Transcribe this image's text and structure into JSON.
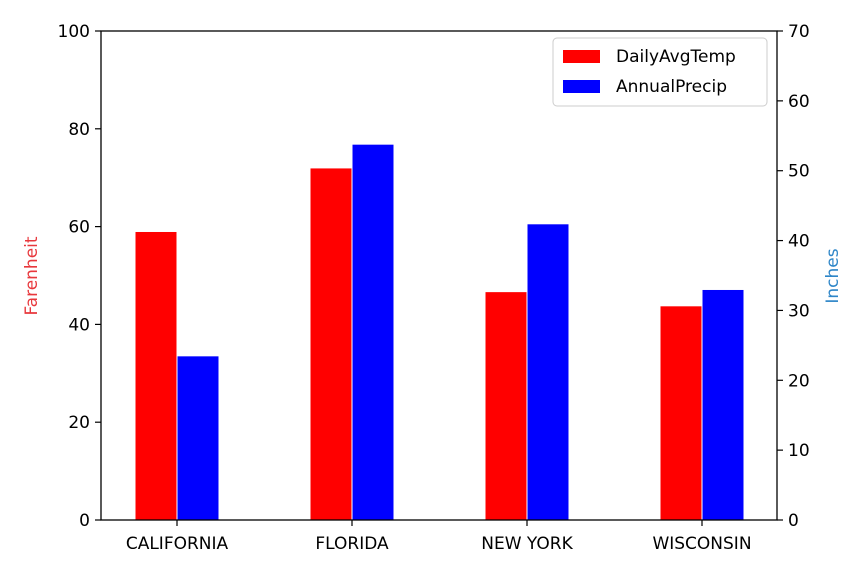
{
  "chart_data": {
    "type": "bar",
    "categories": [
      "CALIFORNIA",
      "FLORIDA",
      "NEW YORK",
      "WISCONSIN"
    ],
    "series": [
      {
        "name": "DailyAvgTemp",
        "axis": "left",
        "color": "#ff0000",
        "values": [
          59,
          72,
          46.7,
          43.8
        ]
      },
      {
        "name": "AnnualPrecip",
        "axis": "right",
        "color": "#0000ff",
        "values": [
          23.5,
          53.8,
          42.4,
          33
        ]
      }
    ],
    "ylabel_left": "Farenheit",
    "ylabel_left_color": "#e8383d",
    "ylabel_right": "Inches",
    "ylabel_right_color": "#2e86c8",
    "ylim_left": [
      0,
      100
    ],
    "ylim_right": [
      0,
      70
    ],
    "yticks_left": [
      "0",
      "20",
      "40",
      "60",
      "80",
      "100"
    ],
    "yticks_right": [
      "0",
      "10",
      "20",
      "30",
      "40",
      "50",
      "60",
      "70"
    ],
    "legend_position": "top-right",
    "grid": false
  }
}
